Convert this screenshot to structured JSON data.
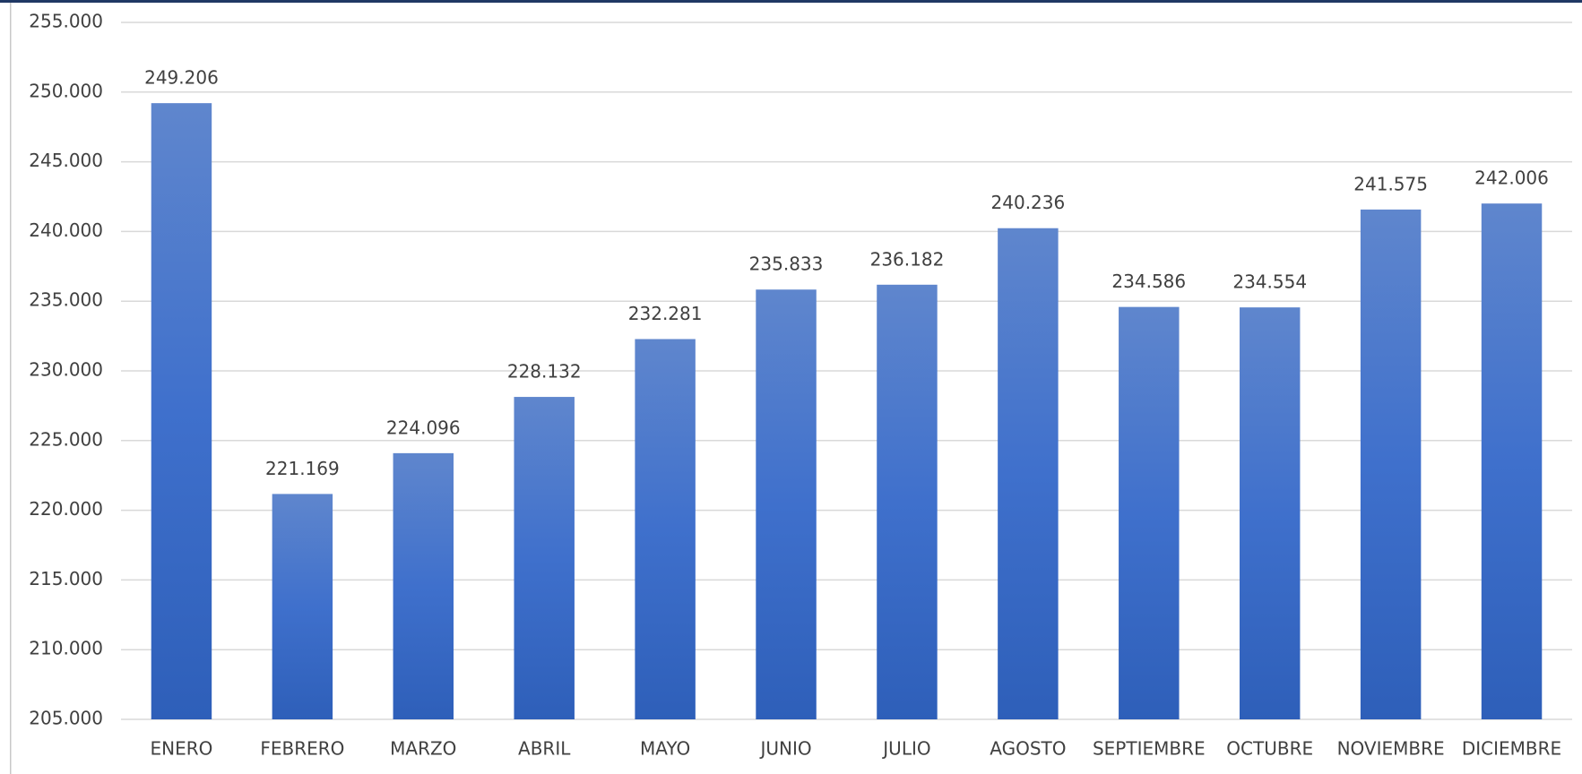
{
  "chart_data": {
    "type": "bar",
    "categories": [
      "ENERO",
      "FEBRERO",
      "MARZO",
      "ABRIL",
      "MAYO",
      "JUNIO",
      "JULIO",
      "AGOSTO",
      "SEPTIEMBRE",
      "OCTUBRE",
      "NOVIEMBRE",
      "DICIEMBRE"
    ],
    "values": [
      249206,
      221169,
      224096,
      228132,
      232281,
      235833,
      236182,
      240236,
      234586,
      234554,
      241575,
      242006
    ],
    "value_labels": [
      "249.206",
      "221.169",
      "224.096",
      "228.132",
      "232.281",
      "235.833",
      "236.182",
      "240.236",
      "234.586",
      "234.554",
      "241.575",
      "242.006"
    ],
    "color": "#4472c4",
    "ylim": [
      205000,
      255000
    ],
    "yticks": [
      {
        "value": 205000,
        "label": "205.000"
      },
      {
        "value": 210000,
        "label": "210.000"
      },
      {
        "value": 215000,
        "label": "215.000"
      },
      {
        "value": 220000,
        "label": "220.000"
      },
      {
        "value": 225000,
        "label": "225.000"
      },
      {
        "value": 230000,
        "label": "230.000"
      },
      {
        "value": 235000,
        "label": "235.000"
      },
      {
        "value": 240000,
        "label": "240.000"
      },
      {
        "value": 245000,
        "label": "245.000"
      },
      {
        "value": 250000,
        "label": "250.000"
      },
      {
        "value": 255000,
        "label": "255.000"
      }
    ],
    "grid": true
  }
}
